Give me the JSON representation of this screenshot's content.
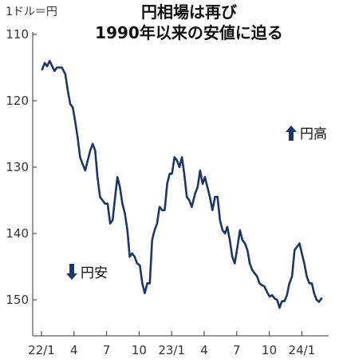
{
  "chart_data": {
    "type": "line",
    "title_lines": [
      "円相場は再び",
      "1990年以来の安値に迫る"
    ],
    "ylabel": "1ドル＝円",
    "ylim": [
      110,
      155
    ],
    "y_inverted": true,
    "y_ticks": [
      "110",
      "120",
      "130",
      "140",
      "150"
    ],
    "x_range": [
      "2022-01",
      "2024-03"
    ],
    "x_ticks": [
      "22/1",
      "4",
      "7",
      "10",
      "23/1",
      "4",
      "7",
      "10",
      "24/1"
    ],
    "grid": false,
    "annotations": {
      "up": "円高",
      "down": "円安"
    },
    "line_color": "#1c3766",
    "series": [
      {
        "x": [
          "2022-01-03",
          "2022-01-10",
          "2022-01-17",
          "2022-01-24",
          "2022-01-31",
          "2022-02-07",
          "2022-02-14",
          "2022-02-21",
          "2022-02-28",
          "2022-03-07",
          "2022-03-14",
          "2022-03-21",
          "2022-03-28",
          "2022-04-04",
          "2022-04-11",
          "2022-04-18",
          "2022-04-25",
          "2022-05-02",
          "2022-05-09",
          "2022-05-16",
          "2022-05-23",
          "2022-05-30",
          "2022-06-06",
          "2022-06-13",
          "2022-06-20",
          "2022-06-27",
          "2022-07-04",
          "2022-07-11",
          "2022-07-18",
          "2022-07-25",
          "2022-08-01",
          "2022-08-08",
          "2022-08-15",
          "2022-08-22",
          "2022-08-29",
          "2022-09-05",
          "2022-09-12",
          "2022-09-19",
          "2022-09-26",
          "2022-10-03",
          "2022-10-10",
          "2022-10-17",
          "2022-10-24",
          "2022-10-31",
          "2022-11-07",
          "2022-11-14",
          "2022-11-21",
          "2022-11-28",
          "2022-12-05",
          "2022-12-12",
          "2022-12-19",
          "2022-12-26",
          "2023-01-02",
          "2023-01-09",
          "2023-01-16",
          "2023-01-23",
          "2023-01-30",
          "2023-02-06",
          "2023-02-13",
          "2023-02-20",
          "2023-02-27",
          "2023-03-06",
          "2023-03-13",
          "2023-03-20",
          "2023-03-27",
          "2023-04-03",
          "2023-04-10",
          "2023-04-17",
          "2023-04-24",
          "2023-05-01",
          "2023-05-08",
          "2023-05-15",
          "2023-05-22",
          "2023-05-29",
          "2023-06-05",
          "2023-06-12",
          "2023-06-19",
          "2023-06-26",
          "2023-07-03",
          "2023-07-10",
          "2023-07-17",
          "2023-07-24",
          "2023-07-31",
          "2023-08-07",
          "2023-08-14",
          "2023-08-21",
          "2023-08-28",
          "2023-09-04",
          "2023-09-11",
          "2023-09-18",
          "2023-09-25",
          "2023-10-02",
          "2023-10-09",
          "2023-10-16",
          "2023-10-23",
          "2023-10-30",
          "2023-11-06",
          "2023-11-13",
          "2023-11-20",
          "2023-11-27",
          "2023-12-04",
          "2023-12-11",
          "2023-12-18",
          "2023-12-25",
          "2024-01-01",
          "2024-01-08",
          "2024-01-15",
          "2024-01-22",
          "2024-01-29",
          "2024-02-05",
          "2024-02-12",
          "2024-02-19",
          "2024-02-26"
        ],
        "y": [
          115.3,
          114.3,
          114.8,
          114.0,
          114.8,
          115.5,
          115.0,
          115.0,
          115.0,
          116.0,
          118.5,
          120.5,
          121.0,
          123.0,
          125.5,
          128.5,
          129.5,
          130.5,
          129.0,
          127.5,
          126.5,
          127.5,
          131.5,
          134.5,
          135.0,
          135.5,
          135.5,
          138.5,
          138.0,
          134.5,
          131.5,
          133.0,
          135.5,
          137.0,
          139.5,
          143.5,
          143.0,
          143.5,
          144.5,
          144.8,
          147.5,
          149.0,
          147.5,
          147.5,
          141.0,
          139.5,
          138.5,
          136.0,
          136.5,
          136.5,
          132.5,
          131.0,
          131.0,
          128.5,
          129.0,
          130.0,
          128.5,
          131.0,
          134.5,
          135.0,
          136.0,
          134.0,
          133.0,
          130.5,
          132.5,
          131.5,
          133.0,
          134.5,
          136.5,
          134.5,
          134.5,
          138.0,
          139.5,
          140.0,
          139.0,
          141.0,
          143.5,
          144.5,
          142.0,
          139.5,
          141.0,
          141.5,
          142.5,
          144.5,
          145.5,
          146.0,
          146.5,
          147.5,
          147.8,
          148.0,
          148.8,
          149.5,
          149.3,
          149.8,
          150.0,
          151.2,
          150.2,
          150.2,
          149.3,
          147.5,
          146.5,
          142.5,
          142.0,
          141.5,
          143.0,
          144.5,
          146.5,
          147.5,
          147.5,
          149.0,
          150.0,
          150.3,
          149.8
        ]
      }
    ]
  }
}
